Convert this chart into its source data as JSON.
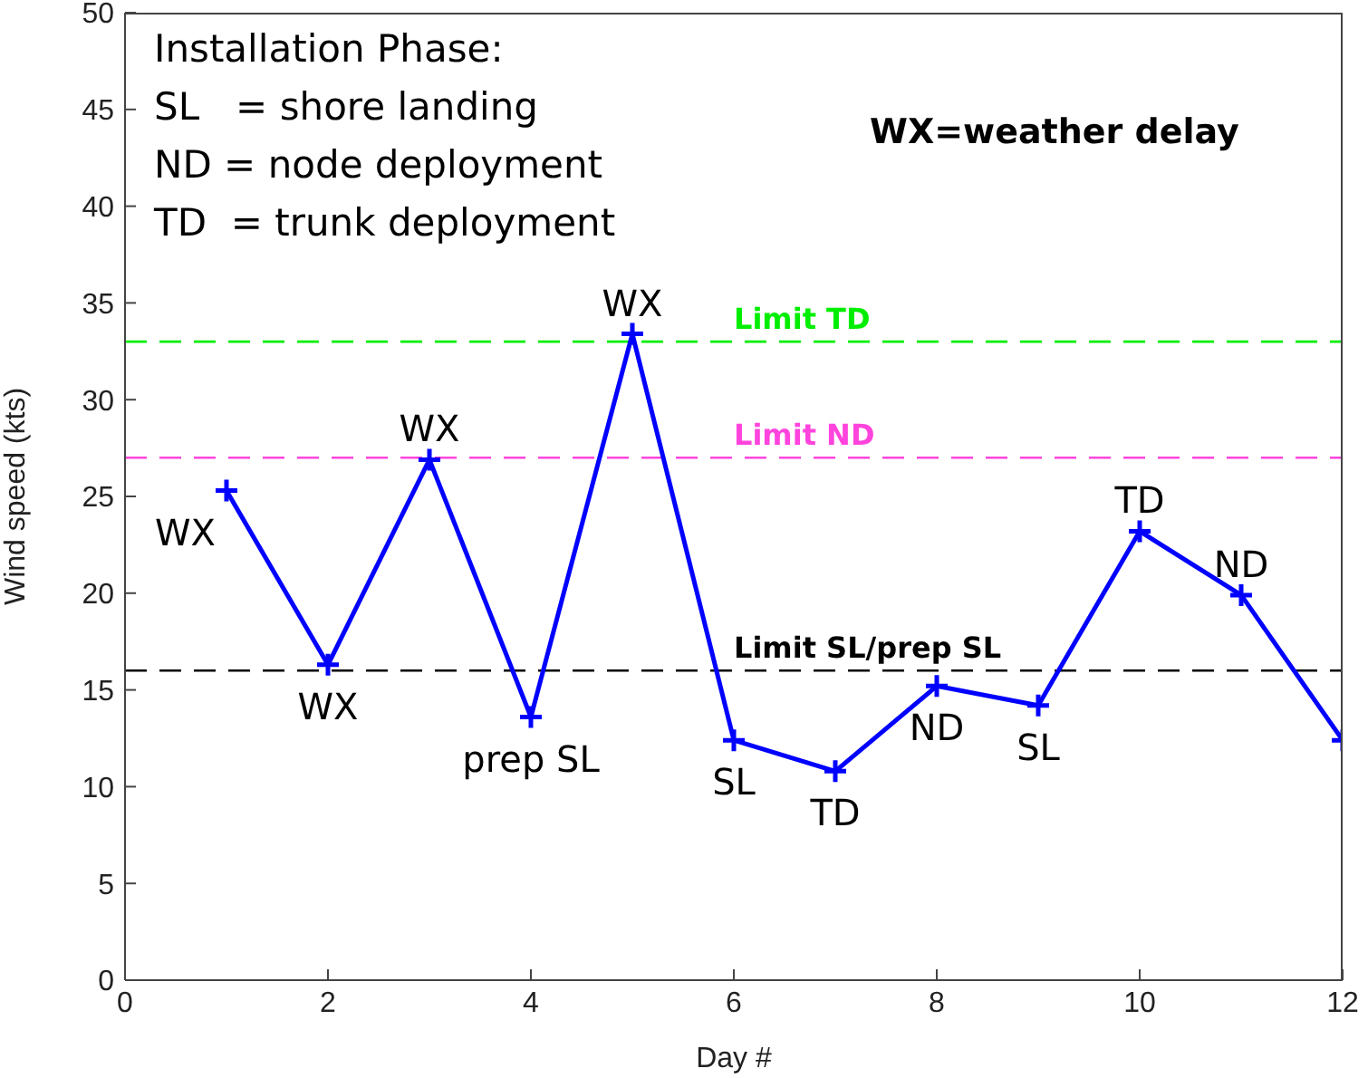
{
  "chart_data": {
    "type": "line",
    "xlabel": "Day #",
    "ylabel": "Wind speed (kts)",
    "x": [
      1,
      2,
      3,
      4,
      5,
      6,
      7,
      8,
      9,
      10,
      11,
      12
    ],
    "series": [
      {
        "color": "#0000ff",
        "values": [
          25.3,
          16.3,
          26.9,
          13.6,
          33.4,
          12.4,
          10.8,
          15.2,
          14.2,
          23.2,
          19.9,
          12.4
        ]
      }
    ],
    "xlim": [
      0,
      12
    ],
    "xticks": [
      0,
      2,
      4,
      6,
      8,
      10,
      12
    ],
    "ylim": [
      0,
      50
    ],
    "yticks": [
      0,
      5,
      10,
      15,
      20,
      25,
      30,
      35,
      40,
      45,
      50
    ],
    "marker": "cross",
    "line_style": "solid",
    "grid": false,
    "legend": false,
    "ref_lines": [
      {
        "axis": "y",
        "value": 33,
        "label": "Limit TD",
        "color": "#00ee00",
        "line_style": "dashed"
      },
      {
        "axis": "y",
        "value": 27,
        "label": "Limit ND",
        "color": "#ff44dd",
        "line_style": "dashed"
      },
      {
        "axis": "y",
        "value": 16,
        "label": "Limit SL/prep SL",
        "color": "#000000",
        "line_style": "dashed"
      }
    ],
    "annotations": [
      {
        "text": "Installation Phase:"
      },
      {
        "text": "SL   = shore landing"
      },
      {
        "text": "ND = node deployment"
      },
      {
        "text": "TD  = trunk deployment"
      },
      {
        "text": "WX=weather delay"
      },
      {
        "text": "WX",
        "x": 1,
        "y": 25.3
      },
      {
        "text": "WX",
        "x": 2,
        "y": 16.3
      },
      {
        "text": "WX",
        "x": 3,
        "y": 26.9
      },
      {
        "text": "prep SL",
        "x": 4,
        "y": 13.6
      },
      {
        "text": "WX",
        "x": 5,
        "y": 33.4
      },
      {
        "text": "SL",
        "x": 6,
        "y": 12.4
      },
      {
        "text": "TD",
        "x": 7,
        "y": 10.8
      },
      {
        "text": "ND",
        "x": 8,
        "y": 15.2
      },
      {
        "text": "SL",
        "x": 9,
        "y": 14.2
      },
      {
        "text": "TD",
        "x": 10,
        "y": 23.2
      },
      {
        "text": "ND",
        "x": 11,
        "y": 19.9
      }
    ]
  }
}
